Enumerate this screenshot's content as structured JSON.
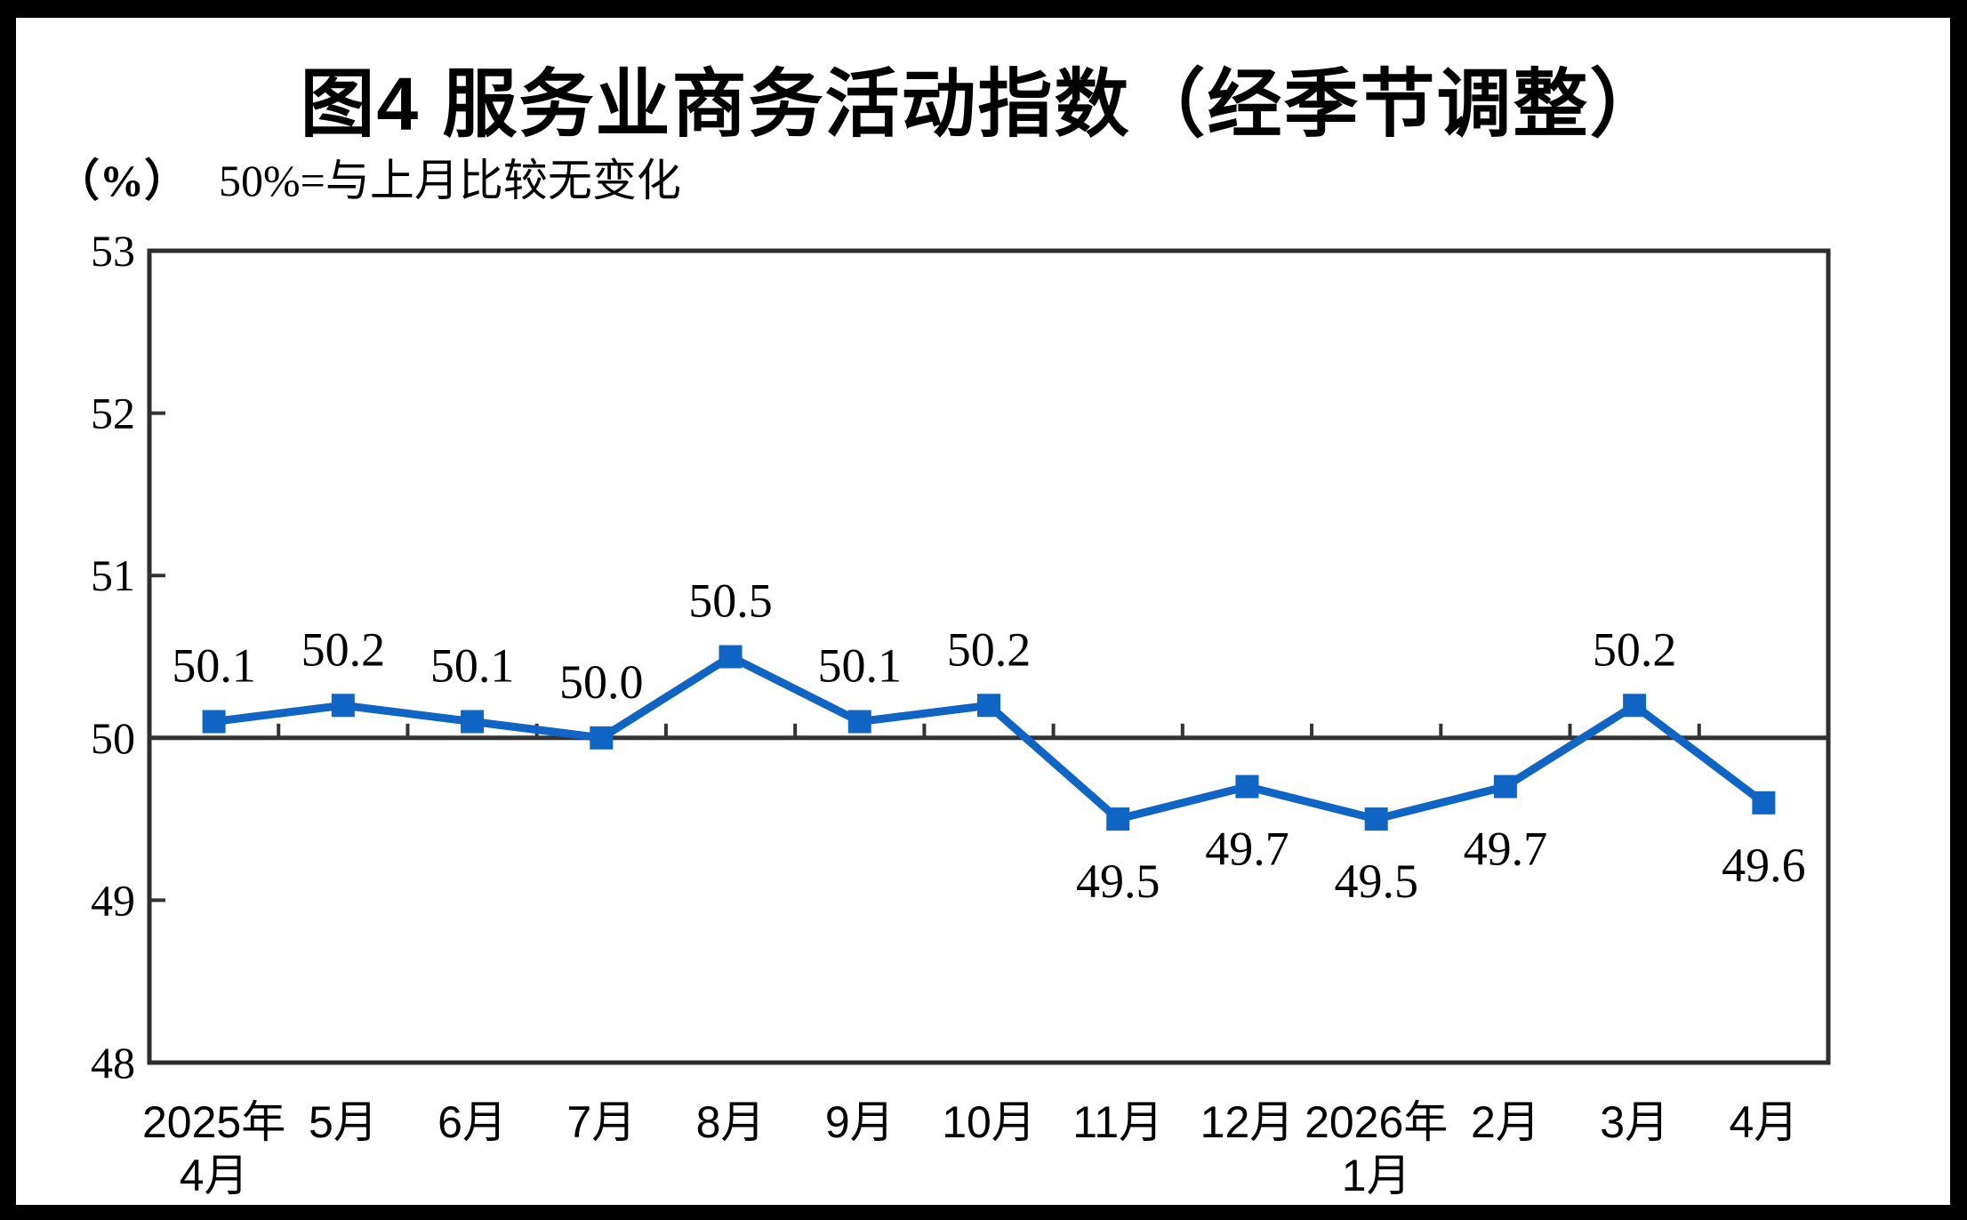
{
  "figure": {
    "title": "图4  服务业商务活动指数（经季节调整）",
    "unit_label": "（%）",
    "subtitle": "50%=与上月比较无变化"
  },
  "chart_data": {
    "type": "line",
    "title": "图4 服务业商务活动指数（经季节调整）",
    "subtitle": "50%=与上月比较无变化",
    "ylabel": "（%）",
    "categories": [
      [
        "2025年",
        "4月"
      ],
      [
        "5月"
      ],
      [
        "6月"
      ],
      [
        "7月"
      ],
      [
        "8月"
      ],
      [
        "9月"
      ],
      [
        "10月"
      ],
      [
        "11月"
      ],
      [
        "12月"
      ],
      [
        "2026年",
        "1月"
      ],
      [
        "2月"
      ],
      [
        "3月"
      ],
      [
        "4月"
      ]
    ],
    "series": [
      {
        "name": "服务业商务活动指数",
        "values": [
          50.1,
          50.2,
          50.1,
          50.0,
          50.5,
          50.1,
          50.2,
          49.5,
          49.7,
          49.5,
          49.7,
          50.2,
          49.6
        ],
        "data_labels": [
          "50.1",
          "50.2",
          "50.1",
          "50.0",
          "50.5",
          "50.1",
          "50.2",
          "49.5",
          "49.7",
          "49.5",
          "49.7",
          "50.2",
          "49.6"
        ]
      }
    ],
    "ylim": [
      48,
      53
    ],
    "y_ticks": [
      "53",
      "52",
      "51",
      "50",
      "49",
      "48"
    ],
    "baseline_value": 50,
    "grid": "off",
    "legend": "none",
    "marker": "square",
    "colors": {
      "line": "#1064C3",
      "marker": "#1064C3",
      "axis": "#333333",
      "plot_border": "#2e2e2e",
      "text": "#000000",
      "background": "#ffffff",
      "outer_frame": "#000000"
    }
  }
}
